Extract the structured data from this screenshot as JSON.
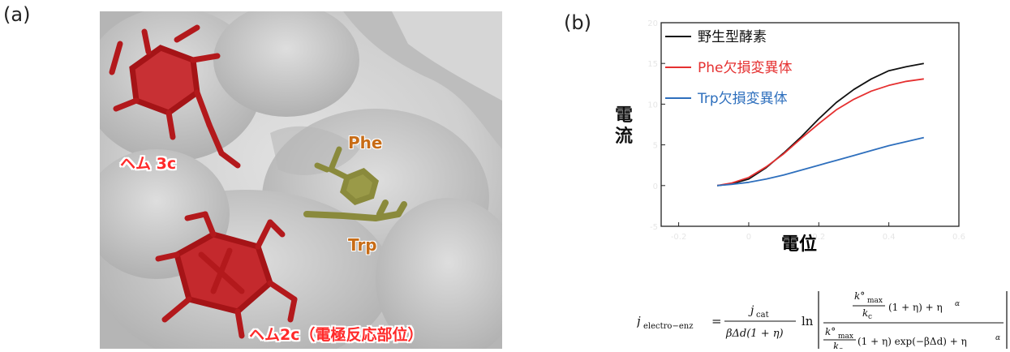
{
  "panel_a": {
    "label": "(a)",
    "heme_top_label": "ヘム 3c",
    "heme_bottom_label": "ヘム2c（電極反応部位）",
    "phe_label": "Phe",
    "trp_label": "Trp",
    "colors": {
      "surface": "#c9c9c9",
      "heme": "#c0282a",
      "residue": "#8a8a3c",
      "residue_label": "#c86c16"
    }
  },
  "panel_b": {
    "label": "(b)"
  },
  "chart_data": {
    "type": "line",
    "xlabel": "電位",
    "ylabel": "電流",
    "x_ticks": [
      "-0.2",
      "0",
      "0.2",
      "0.4",
      "0.6"
    ],
    "y_ticks": [
      "-5",
      "0",
      "5",
      "10",
      "15",
      "20"
    ],
    "xlim": [
      -0.25,
      0.6
    ],
    "ylim": [
      -5,
      20
    ],
    "legend_position": "top-left",
    "series": [
      {
        "name": "野生型酵素",
        "color": "#111111",
        "x": [
          -0.09,
          -0.05,
          0,
          0.05,
          0.1,
          0.15,
          0.2,
          0.25,
          0.3,
          0.35,
          0.4,
          0.45,
          0.5
        ],
        "y": [
          0,
          0.2,
          0.8,
          2.2,
          4.0,
          6.0,
          8.2,
          10.2,
          11.8,
          13.1,
          14.1,
          14.6,
          15.0
        ]
      },
      {
        "name": "Phe欠損変異体",
        "color": "#e53030",
        "x": [
          -0.09,
          -0.05,
          0,
          0.05,
          0.1,
          0.15,
          0.2,
          0.25,
          0.3,
          0.35,
          0.4,
          0.45,
          0.5
        ],
        "y": [
          0,
          0.3,
          1.0,
          2.3,
          3.9,
          5.8,
          7.6,
          9.3,
          10.6,
          11.6,
          12.3,
          12.8,
          13.1
        ]
      },
      {
        "name": "Trp欠損変異体",
        "color": "#2e6fbd",
        "x": [
          -0.09,
          -0.05,
          0,
          0.05,
          0.1,
          0.15,
          0.2,
          0.25,
          0.3,
          0.35,
          0.4,
          0.45,
          0.5
        ],
        "y": [
          0,
          0.15,
          0.4,
          0.8,
          1.3,
          1.9,
          2.5,
          3.1,
          3.7,
          4.3,
          4.9,
          5.4,
          5.9
        ]
      }
    ]
  },
  "equation": {
    "lhs": "j",
    "lhs_sub": "electro−enz",
    "equals": "=",
    "frac_num": "j",
    "frac_num_sub": "cat",
    "frac_den": "βΔd(1 + η)",
    "ln": "ln",
    "k_sym": "k°",
    "k_sub": "max",
    "kc_sym": "k",
    "kc_sub": "c",
    "num_tail": "(1 + η) + η",
    "den_tail": "(1 + η) exp(−βΔd) + η",
    "alpha": "α"
  }
}
